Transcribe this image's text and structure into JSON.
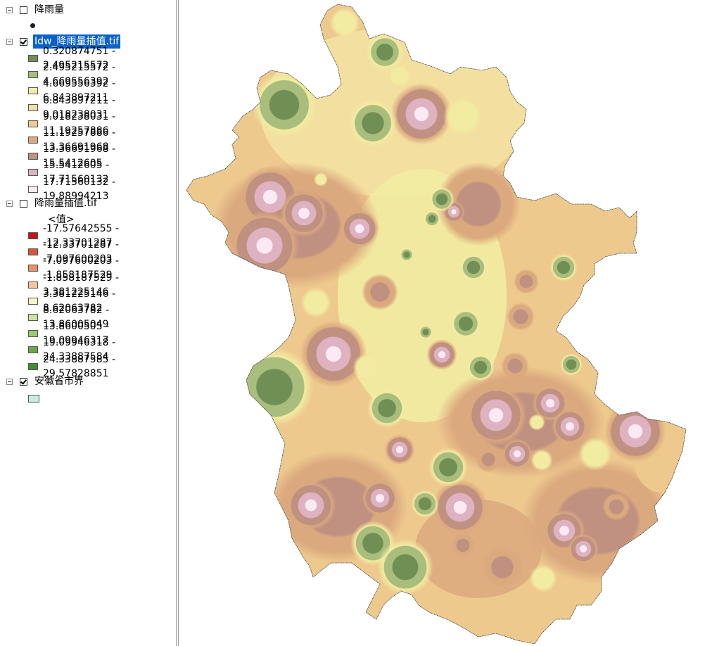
{
  "toc": {
    "layers": [
      {
        "name": "降雨量",
        "checked": false,
        "symbol": "point"
      },
      {
        "name": "Idw_降雨量插值.tif",
        "checked": true,
        "selected": true,
        "classes": [
          {
            "label": "0.320874751 - 2.495215572",
            "color": "#6f8f55"
          },
          {
            "label": "2.495215572 - 4.669556392",
            "color": "#a9bd7c"
          },
          {
            "label": "4.669556392 - 6.843897211",
            "color": "#f2eca2"
          },
          {
            "label": "6.843897211 - 9.018238031",
            "color": "#f3e0a0"
          },
          {
            "label": "9.018238031 - 11.19257886",
            "color": "#eec98e"
          },
          {
            "label": "11.19257886 - 13.36691968",
            "color": "#dba97e"
          },
          {
            "label": "13.36691968 - 15.5412605",
            "color": "#c09080"
          },
          {
            "label": "15.5412605 - 17.71560132",
            "color": "#deb2c0"
          },
          {
            "label": "17.71560132 - 19.88994213",
            "color": "#fbeaf4"
          }
        ]
      },
      {
        "name": "降雨量插值.tif",
        "checked": false,
        "value_heading": "<值>",
        "classes": [
          {
            "label": "-17.57642555 - -12.33701287",
            "color": "#c0141c"
          },
          {
            "label": "-12.33701287 - -7.097600203",
            "color": "#d75436"
          },
          {
            "label": "-7.097600203 - -1.858187529",
            "color": "#ec9162"
          },
          {
            "label": "-1.858187529 - 3.381225146",
            "color": "#f9c59a"
          },
          {
            "label": "3.381225146 - 8.62063782",
            "color": "#fdf4c6"
          },
          {
            "label": "8.62063782 - 13.86005049",
            "color": "#cde3a2"
          },
          {
            "label": "13.8600505 - 19.09946317",
            "color": "#9ccc6e"
          },
          {
            "label": "19.09946318 - 24.33887584",
            "color": "#6aa84a"
          },
          {
            "label": "24.33887585 - 29.57828851",
            "color": "#3f8f2f"
          }
        ]
      },
      {
        "name": "安徽省市界",
        "checked": true,
        "fill": "#c6ece3"
      }
    ]
  },
  "map": {
    "background": "#ffffff",
    "province_base_color": "#eec98e"
  }
}
